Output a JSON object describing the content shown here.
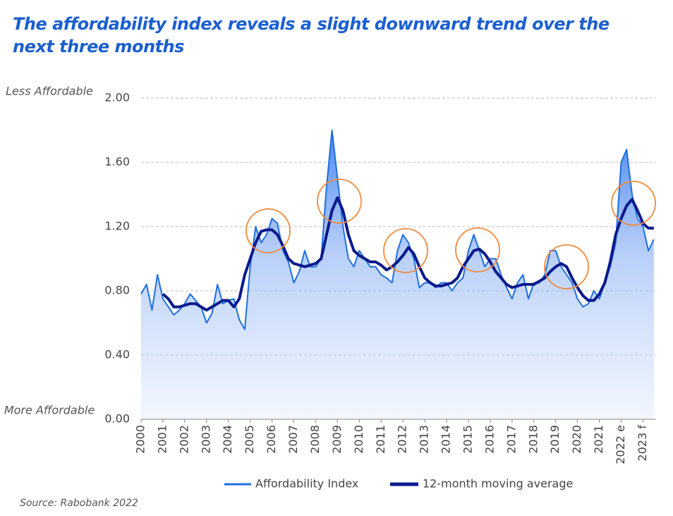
{
  "chart_data": {
    "type": "line",
    "title": "The affordability index reveals a slight downward trend over the next three months",
    "top_label": "Less Affordable",
    "bottom_label": "More Affordable",
    "source": "Source: Rabobank 2022",
    "x": [
      2000,
      2000.25,
      2000.5,
      2000.75,
      2001,
      2001.25,
      2001.5,
      2001.75,
      2002,
      2002.25,
      2002.5,
      2002.75,
      2003,
      2003.25,
      2003.5,
      2003.75,
      2004,
      2004.25,
      2004.5,
      2004.75,
      2005,
      2005.25,
      2005.5,
      2005.75,
      2006,
      2006.25,
      2006.5,
      2006.75,
      2007,
      2007.25,
      2007.5,
      2007.75,
      2008,
      2008.25,
      2008.5,
      2008.75,
      2009,
      2009.25,
      2009.5,
      2009.75,
      2010,
      2010.25,
      2010.5,
      2010.75,
      2011,
      2011.25,
      2011.5,
      2011.75,
      2012,
      2012.25,
      2012.5,
      2012.75,
      2013,
      2013.25,
      2013.5,
      2013.75,
      2014,
      2014.25,
      2014.5,
      2014.75,
      2015,
      2015.25,
      2015.5,
      2015.75,
      2016,
      2016.25,
      2016.5,
      2016.75,
      2017,
      2017.25,
      2017.5,
      2017.75,
      2018,
      2018.25,
      2018.5,
      2018.75,
      2019,
      2019.25,
      2019.5,
      2019.75,
      2020,
      2020.25,
      2020.5,
      2020.75,
      2021,
      2021.25,
      2021.5,
      2021.75,
      2022,
      2022.25,
      2022.5,
      2022.75,
      2023,
      2023.25,
      2023.5
    ],
    "series": [
      {
        "name": "Affordability Index",
        "color": "#1e6fe0",
        "fill": true,
        "values": [
          0.78,
          0.84,
          0.68,
          0.9,
          0.75,
          0.7,
          0.65,
          0.68,
          0.72,
          0.78,
          0.74,
          0.7,
          0.6,
          0.66,
          0.84,
          0.72,
          0.74,
          0.75,
          0.62,
          0.56,
          0.95,
          1.2,
          1.1,
          1.15,
          1.25,
          1.22,
          1.05,
          0.98,
          0.85,
          0.92,
          1.05,
          0.95,
          0.95,
          1.0,
          1.45,
          1.8,
          1.5,
          1.2,
          1.0,
          0.95,
          1.05,
          1.0,
          0.95,
          0.95,
          0.9,
          0.88,
          0.85,
          1.05,
          1.15,
          1.1,
          1.0,
          0.82,
          0.85,
          0.85,
          0.82,
          0.85,
          0.85,
          0.8,
          0.85,
          0.88,
          1.05,
          1.15,
          1.05,
          0.95,
          1.0,
          1.0,
          0.9,
          0.82,
          0.75,
          0.85,
          0.9,
          0.75,
          0.85,
          0.85,
          0.9,
          1.05,
          1.05,
          0.95,
          0.9,
          0.85,
          0.75,
          0.7,
          0.72,
          0.8,
          0.75,
          0.85,
          0.95,
          1.1,
          1.6,
          1.68,
          1.4,
          1.25,
          1.2,
          1.05,
          1.12
        ]
      },
      {
        "name": "12-month moving average",
        "color": "#0a1a8c",
        "fill": false,
        "values": [
          null,
          null,
          null,
          null,
          0.78,
          0.75,
          0.7,
          0.7,
          0.71,
          0.72,
          0.72,
          0.7,
          0.68,
          0.7,
          0.72,
          0.74,
          0.74,
          0.7,
          0.75,
          0.9,
          1.0,
          1.1,
          1.17,
          1.18,
          1.18,
          1.15,
          1.08,
          1.0,
          0.97,
          0.96,
          0.95,
          0.96,
          0.97,
          1.0,
          1.15,
          1.3,
          1.38,
          1.3,
          1.15,
          1.05,
          1.02,
          1.0,
          0.98,
          0.98,
          0.96,
          0.93,
          0.95,
          0.98,
          1.02,
          1.07,
          1.03,
          0.95,
          0.88,
          0.85,
          0.83,
          0.83,
          0.84,
          0.85,
          0.88,
          0.95,
          1.0,
          1.05,
          1.06,
          1.03,
          0.98,
          0.92,
          0.88,
          0.84,
          0.82,
          0.83,
          0.84,
          0.84,
          0.84,
          0.86,
          0.88,
          0.92,
          0.95,
          0.97,
          0.95,
          0.88,
          0.82,
          0.77,
          0.74,
          0.74,
          0.78,
          0.85,
          0.98,
          1.15,
          1.25,
          1.33,
          1.37,
          1.3,
          1.22,
          1.19,
          1.19
        ]
      }
    ],
    "xlim": [
      2000,
      2023.6
    ],
    "xticks": [
      2000,
      2001,
      2002,
      2003,
      2004,
      2005,
      2006,
      2007,
      2008,
      2009,
      2010,
      2011,
      2012,
      2013,
      2014,
      2015,
      2016,
      2017,
      2018,
      2019,
      2020,
      2021,
      {
        "value": 2022,
        "label": "2022 e"
      },
      {
        "value": 2023,
        "label": "2023 f"
      }
    ],
    "ylim": [
      0,
      2
    ],
    "yticks": [
      {
        "value": 0,
        "label": "0.00"
      },
      {
        "value": 0.4,
        "label": "0.40"
      },
      {
        "value": 0.8,
        "label": "0.80"
      },
      {
        "value": 1.2,
        "label": "1.20"
      },
      {
        "value": 1.6,
        "label": "1.60"
      },
      {
        "value": 2,
        "label": "2.00"
      }
    ],
    "grid": true
  }
}
